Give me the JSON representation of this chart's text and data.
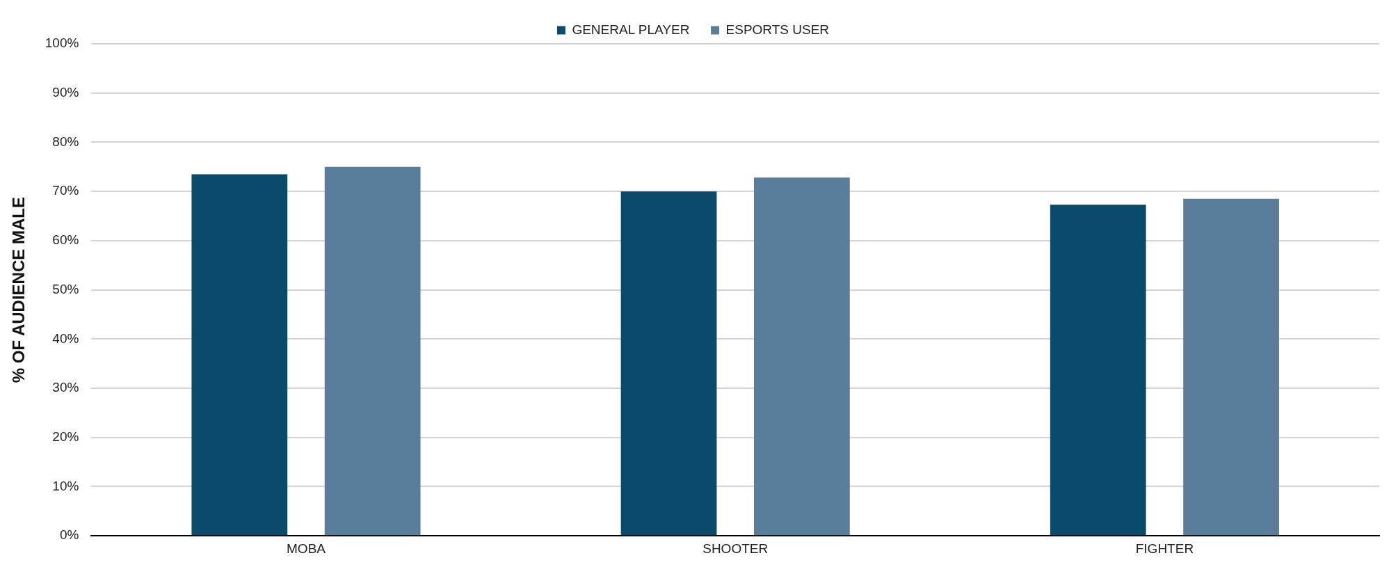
{
  "chart_data": {
    "type": "bar",
    "ylabel": "% OF AUDIENCE MALE",
    "categories": [
      "MOBA",
      "SHOOTER",
      "FIGHTER"
    ],
    "series": [
      {
        "name": "GENERAL PLAYER",
        "color": "#0a4a6b",
        "values": [
          73.5,
          70,
          67.3
        ]
      },
      {
        "name": "ESPORTS USER",
        "color": "#5a7d99",
        "values": [
          75,
          72.8,
          68.5
        ]
      }
    ],
    "ylim": [
      0,
      100
    ],
    "yticks": [
      {
        "value": 0,
        "label": "0%"
      },
      {
        "value": 10,
        "label": "10%"
      },
      {
        "value": 20,
        "label": "20%"
      },
      {
        "value": 30,
        "label": "30%"
      },
      {
        "value": 40,
        "label": "40%"
      },
      {
        "value": 50,
        "label": "50%"
      },
      {
        "value": 60,
        "label": "60%"
      },
      {
        "value": 70,
        "label": "70%"
      },
      {
        "value": 80,
        "label": "80%"
      },
      {
        "value": 90,
        "label": "90%"
      },
      {
        "value": 100,
        "label": "100%"
      }
    ],
    "grid": "y",
    "legend": "top"
  }
}
